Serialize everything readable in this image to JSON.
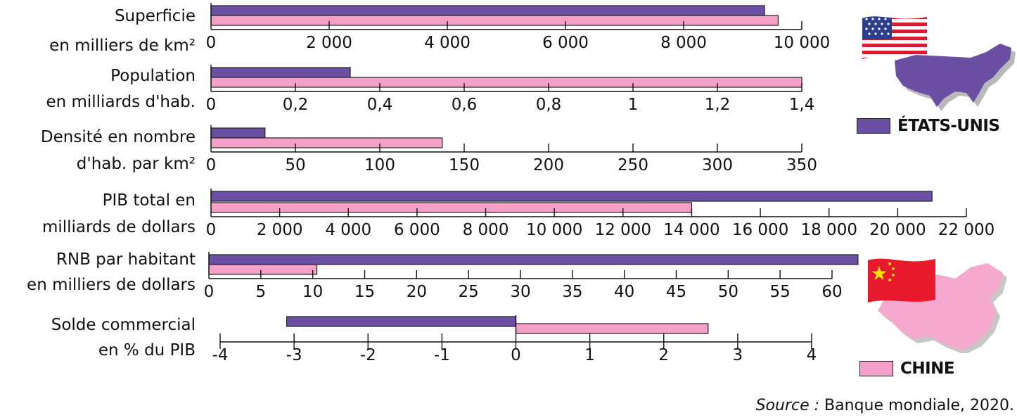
{
  "colors": {
    "usa": "#6a4fa2",
    "china": "#f4a0c9",
    "usa_map": "#6a4fa2",
    "china_map": "#f6a9cf",
    "china_flag": "#e8192c",
    "flag_star": "#ffe000"
  },
  "icons": {
    "usa_flag": "usa-flag-icon",
    "usa_map": "usa-map-icon",
    "china_flag": "china-flag-icon",
    "china_map": "china-map-icon"
  },
  "legend": {
    "usa": "ÉTATS-UNIS",
    "china": "CHINE"
  },
  "source": {
    "prefix": "Source :",
    "text": " Banque mondiale, 2020."
  },
  "chart_data": [
    {
      "type": "bar",
      "label_lines": [
        "Superficie",
        "en milliers de km²"
      ],
      "series": [
        {
          "name": "ÉTATS-UNIS",
          "values": [
            9370
          ]
        },
        {
          "name": "CHINE",
          "values": [
            9600
          ]
        }
      ],
      "xlim": [
        0,
        10000
      ],
      "ticks": [
        "0",
        "2 000",
        "4 000",
        "6 000",
        "8 000",
        "10 000"
      ]
    },
    {
      "type": "bar",
      "label_lines": [
        "Population",
        "en milliards d'hab."
      ],
      "series": [
        {
          "name": "ÉTATS-UNIS",
          "values": [
            0.33
          ]
        },
        {
          "name": "CHINE",
          "values": [
            1.4
          ]
        }
      ],
      "xlim": [
        0,
        1.4
      ],
      "ticks": [
        "0",
        "0,2",
        "0,4",
        "0,6",
        "0,8",
        "1",
        "1,2",
        "1,4"
      ]
    },
    {
      "type": "bar",
      "label_lines": [
        "Densité en nombre",
        "d'hab. par km²"
      ],
      "series": [
        {
          "name": "ÉTATS-UNIS",
          "values": [
            32
          ]
        },
        {
          "name": "CHINE",
          "values": [
            137
          ]
        }
      ],
      "xlim": [
        0,
        350
      ],
      "ticks": [
        "0",
        "50",
        "100",
        "150",
        "200",
        "250",
        "300",
        "350"
      ]
    },
    {
      "type": "bar",
      "label_lines": [
        "PIB total en",
        "milliards de dollars"
      ],
      "series": [
        {
          "name": "ÉTATS-UNIS",
          "values": [
            21000
          ]
        },
        {
          "name": "CHINE",
          "values": [
            14000
          ]
        }
      ],
      "xlim": [
        0,
        22000
      ],
      "ticks": [
        "0",
        "2 000",
        "4 000",
        "6 000",
        "8 000",
        "10 000",
        "12 000",
        "14 000",
        "16 000",
        "18 000",
        "20 000",
        "22 000"
      ]
    },
    {
      "type": "bar",
      "label_lines": [
        "RNB par habitant",
        "en milliers de dollars"
      ],
      "series": [
        {
          "name": "ÉTATS-UNIS",
          "values": [
            62.5
          ]
        },
        {
          "name": "CHINE",
          "values": [
            10.4
          ]
        }
      ],
      "xlim": [
        0,
        60
      ],
      "ticks": [
        "0",
        "5",
        "10",
        "15",
        "20",
        "25",
        "30",
        "35",
        "40",
        "45",
        "50",
        "55",
        "60"
      ]
    },
    {
      "type": "bar",
      "label_lines": [
        "Solde commercial",
        "en % du PIB"
      ],
      "series": [
        {
          "name": "ÉTATS-UNIS",
          "values": [
            -3.1
          ]
        },
        {
          "name": "CHINE",
          "values": [
            2.6
          ]
        }
      ],
      "xlim": [
        -4,
        4
      ],
      "ticks": [
        "-4",
        "-3",
        "-2",
        "-1",
        "0",
        "1",
        "2",
        "3",
        "4"
      ]
    }
  ]
}
